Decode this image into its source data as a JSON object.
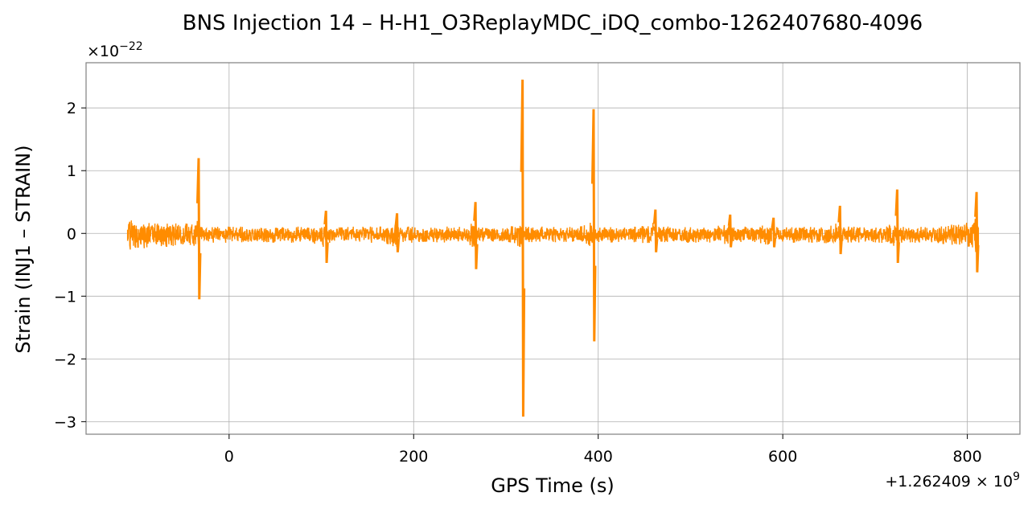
{
  "chart_data": {
    "type": "line",
    "title": "BNS Injection 14 – H-H1_O3ReplayMDC_iDQ_combo-1262407680-4096",
    "xlabel": "GPS Time (s)",
    "ylabel": "Strain (INJ1 – STRAIN)",
    "x_offset_label": "+1.262409 × 10",
    "x_offset_exponent": "9",
    "y_scale_label": "×10",
    "y_scale_exponent": "−22",
    "x_ticks": [
      0,
      200,
      400,
      600,
      800
    ],
    "x_tick_labels": [
      "0",
      "200",
      "400",
      "600",
      "800"
    ],
    "y_ticks": [
      -3,
      -2,
      -1,
      0,
      1,
      2
    ],
    "y_tick_labels": [
      "−3",
      "−2",
      "−1",
      "0",
      "1",
      "2"
    ],
    "xlim": [
      -155,
      857
    ],
    "ylim": [
      -3.2,
      2.72
    ],
    "grid": true,
    "series": [
      {
        "color": "#ff8c00",
        "x_range": [
          -110,
          812
        ],
        "baseline_noise_amplitude": 0.13,
        "baseline_offset": -0.02,
        "spikes": [
          {
            "x": -33,
            "max": 1.2,
            "min": -1.05
          },
          {
            "x": 105,
            "max": 0.36,
            "min": -0.47
          },
          {
            "x": 182,
            "max": 0.32,
            "min": -0.3
          },
          {
            "x": 267,
            "max": 0.5,
            "min": -0.57
          },
          {
            "x": 318,
            "max": 2.45,
            "min": -2.92
          },
          {
            "x": 395,
            "max": 1.98,
            "min": -1.72
          },
          {
            "x": 462,
            "max": 0.38,
            "min": -0.3
          },
          {
            "x": 543,
            "max": 0.3,
            "min": -0.22
          },
          {
            "x": 590,
            "max": 0.25,
            "min": -0.22
          },
          {
            "x": 662,
            "max": 0.44,
            "min": -0.33
          },
          {
            "x": 724,
            "max": 0.7,
            "min": -0.47
          },
          {
            "x": 810,
            "max": 0.66,
            "min": -0.62
          }
        ]
      }
    ]
  }
}
